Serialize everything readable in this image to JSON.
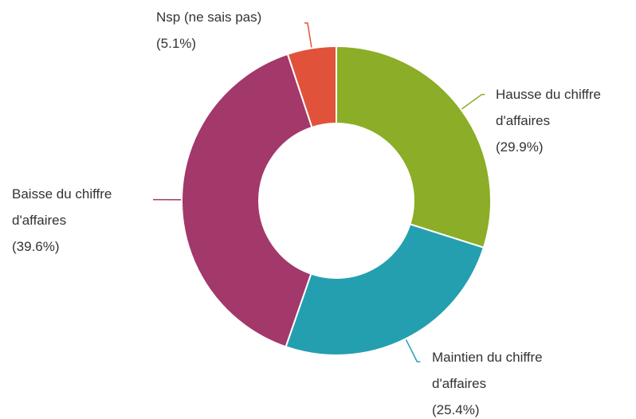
{
  "chart_data": {
    "type": "donut",
    "categories": [
      "Hausse du chiffre d'affaires",
      "Maintien du chiffre d'affaires",
      "Baisse du chiffre d'affaires",
      "Nsp (ne sais pas)"
    ],
    "values": [
      29.9,
      25.4,
      39.6,
      5.1
    ],
    "value_labels": [
      "(29.9%)",
      "(25.4%)",
      "(39.6%)",
      "(5.1%)"
    ],
    "colors": [
      "#8bad27",
      "#249fb0",
      "#a3386a",
      "#e0533a"
    ]
  }
}
